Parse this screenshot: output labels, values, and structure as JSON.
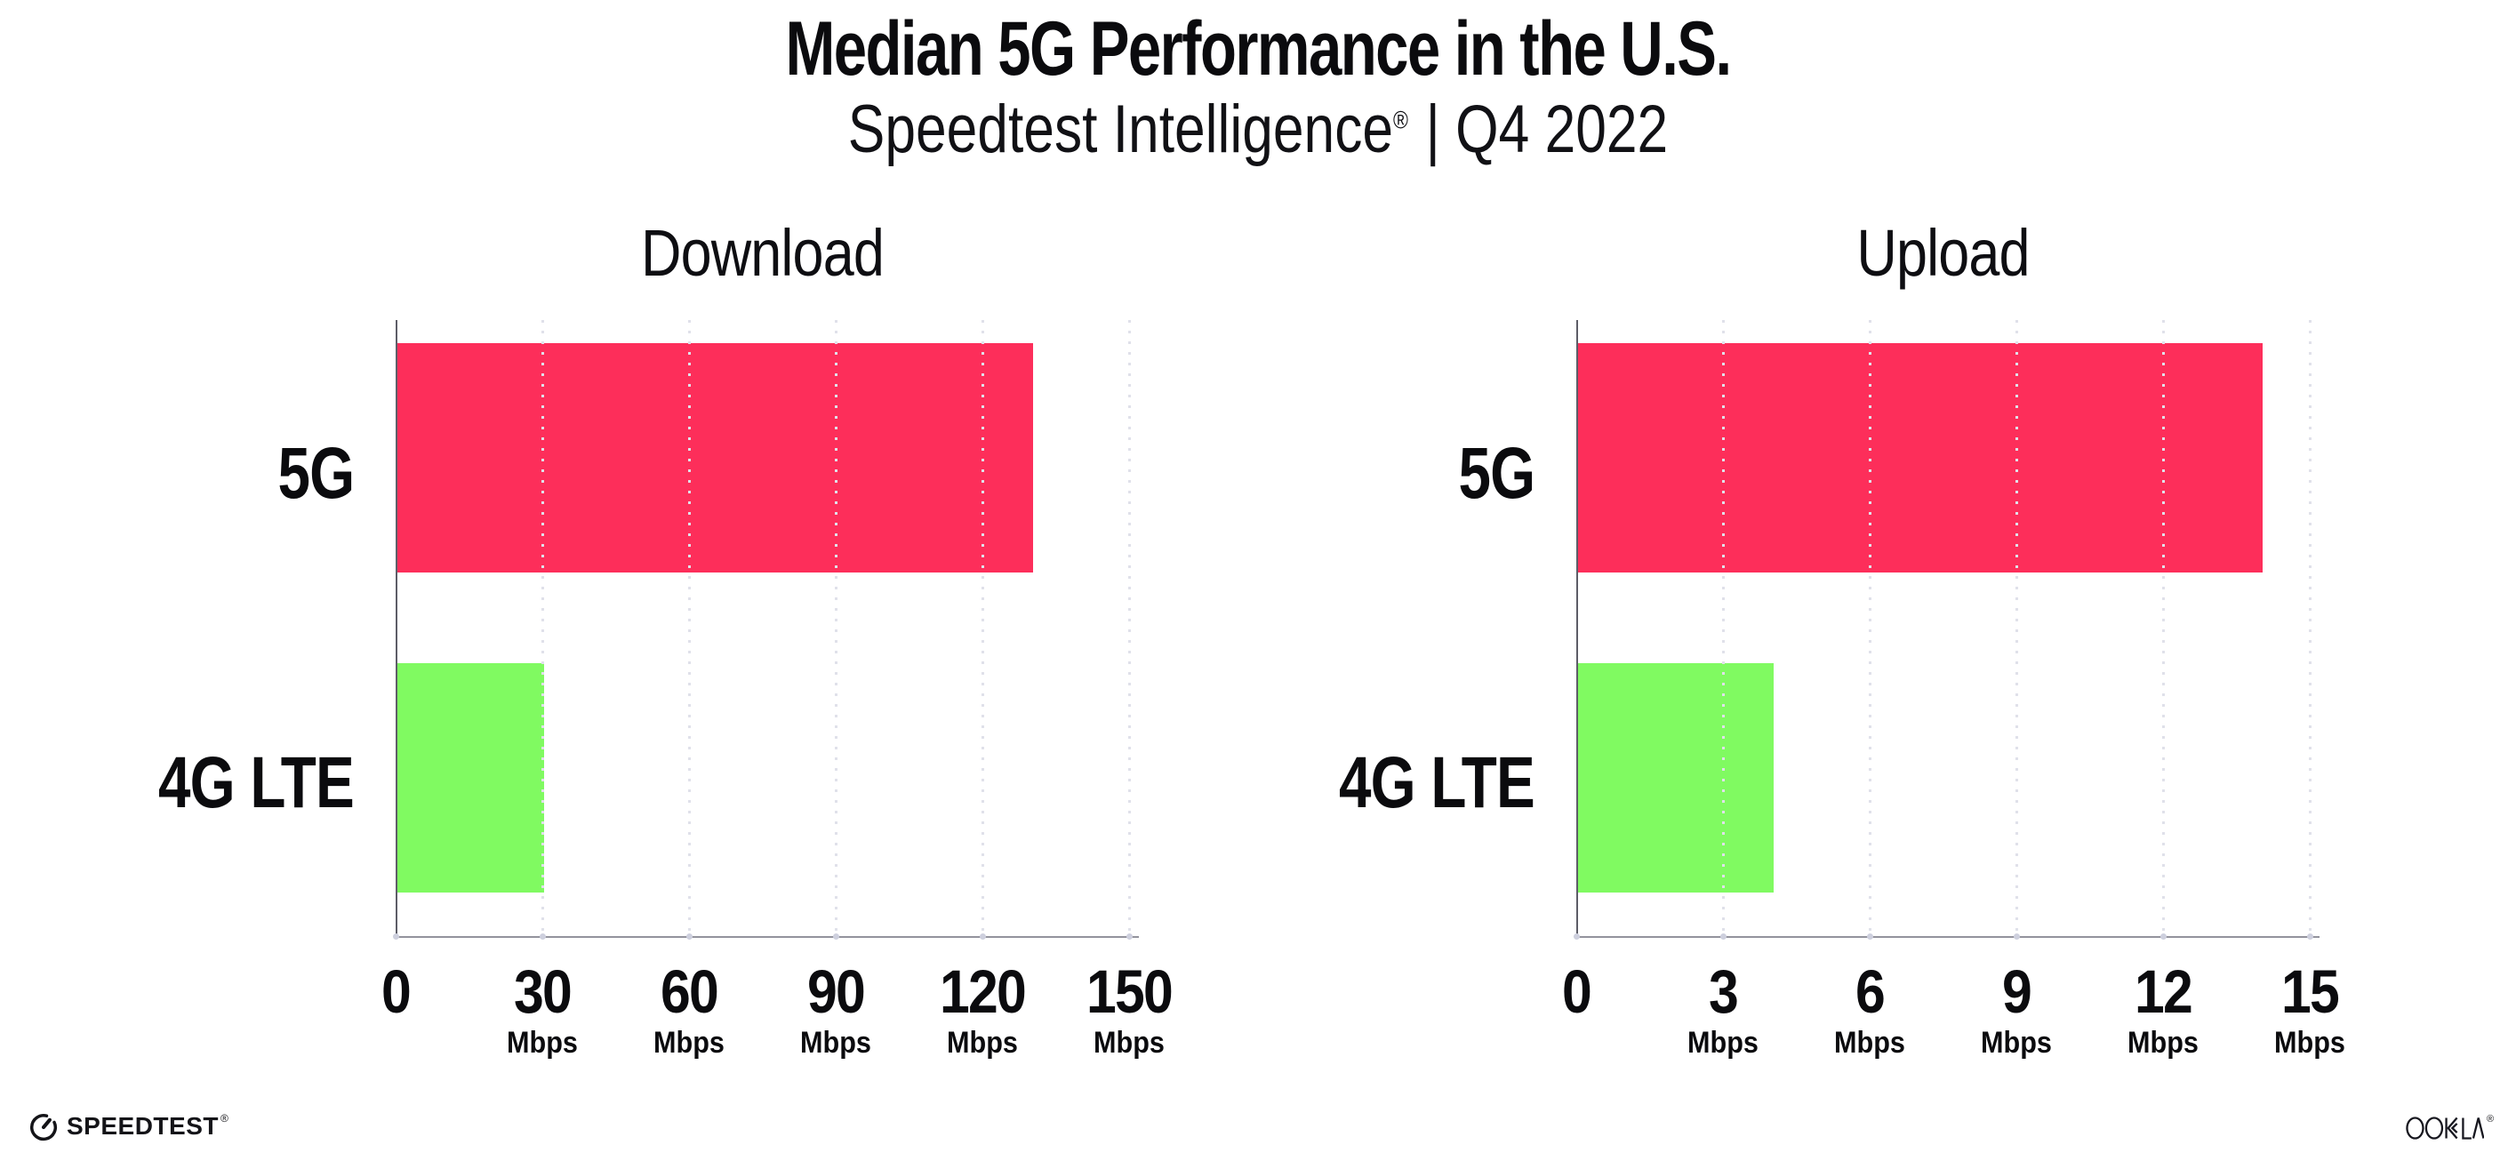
{
  "page": {
    "background": "#ffffff"
  },
  "header": {
    "title": "Median 5G Performance in the U.S.",
    "subtitle_brand": "Speedtest Intelligence",
    "subtitle_reg": "®",
    "subtitle_rest": "| Q4 2022"
  },
  "chart_data": [
    {
      "type": "bar",
      "orientation": "horizontal",
      "title": "Download",
      "categories": [
        "5G",
        "4G LTE"
      ],
      "values": [
        130,
        30
      ],
      "value_unit": "Mbps",
      "xlim": [
        0,
        150
      ],
      "ticks": [
        0,
        30,
        60,
        90,
        120,
        150
      ],
      "tick_unit": "Mbps",
      "bar_colors": [
        "#fd2e5a",
        "#80fa61"
      ],
      "grid": "vertical-dotted",
      "legend": "none"
    },
    {
      "type": "bar",
      "orientation": "horizontal",
      "title": "Upload",
      "categories": [
        "5G",
        "4G LTE"
      ],
      "values": [
        14,
        4
      ],
      "value_unit": "Mbps",
      "xlim": [
        0,
        15
      ],
      "ticks": [
        0,
        3,
        6,
        9,
        12,
        15
      ],
      "tick_unit": "Mbps",
      "bar_colors": [
        "#fd2e5a",
        "#80fa61"
      ],
      "grid": "vertical-dotted",
      "legend": "none"
    }
  ],
  "footer": {
    "speedtest_label": "SPEEDTEST",
    "speedtest_reg": "®",
    "ookla_label": "OOKLA",
    "ookla_reg": "®"
  },
  "style": {
    "bar_color_5g": "#fd2e5a",
    "bar_color_4g_lte": "#80fa61",
    "axis_color": "#93939d",
    "grid_dot_color": "#e0e1ea",
    "text_color": "#0b0b0e"
  }
}
